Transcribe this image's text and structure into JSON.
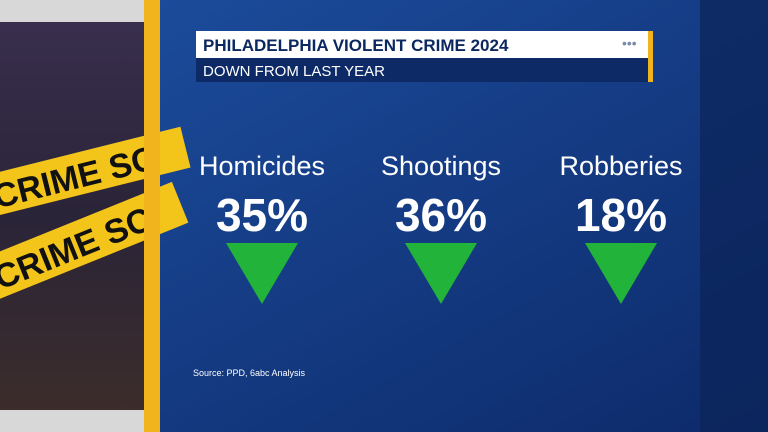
{
  "header": {
    "title": "PHILADELPHIA VIOLENT CRIME 2024",
    "subtitle": "DOWN FROM LAST YEAR"
  },
  "stats": [
    {
      "label": "Homicides",
      "value": "35%"
    },
    {
      "label": "Shootings",
      "value": "36%"
    },
    {
      "label": "Robberies",
      "value": "18%"
    }
  ],
  "source": "Source: PPD, 6abc Analysis",
  "photo": {
    "tape": [
      "CRIME SC",
      "CRIME SC"
    ]
  }
}
